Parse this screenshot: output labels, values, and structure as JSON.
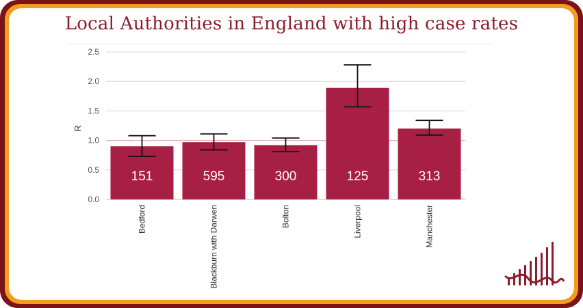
{
  "title": "Local Authorities in England with high case rates",
  "chart_data": {
    "type": "bar",
    "title": "Local Authorities in England with high case rates",
    "xlabel": "",
    "ylabel": "R",
    "categories": [
      "Bedford",
      "Blackburn with Darwen",
      "Bolton",
      "Liverpool",
      "Manchester"
    ],
    "values": [
      0.9,
      0.97,
      0.92,
      1.89,
      1.2
    ],
    "error_low": [
      0.73,
      0.84,
      0.81,
      1.57,
      1.09
    ],
    "error_high": [
      1.08,
      1.11,
      1.04,
      2.28,
      1.34
    ],
    "bar_labels": [
      "151",
      "595",
      "300",
      "125",
      "313"
    ],
    "ylim": [
      0,
      2.5
    ],
    "yticks": [
      "0.0",
      "0.5",
      "1.0",
      "1.5",
      "2.0",
      "2.5"
    ],
    "reference_line": 1.0,
    "grid": true,
    "colors": {
      "bar": "#a81f45",
      "reference_line": "#e8a0a0",
      "error_bar": "#111111",
      "frame_outer": "#7a1416",
      "frame_inner": "#f39c1e",
      "title": "#8a1c2b"
    }
  }
}
